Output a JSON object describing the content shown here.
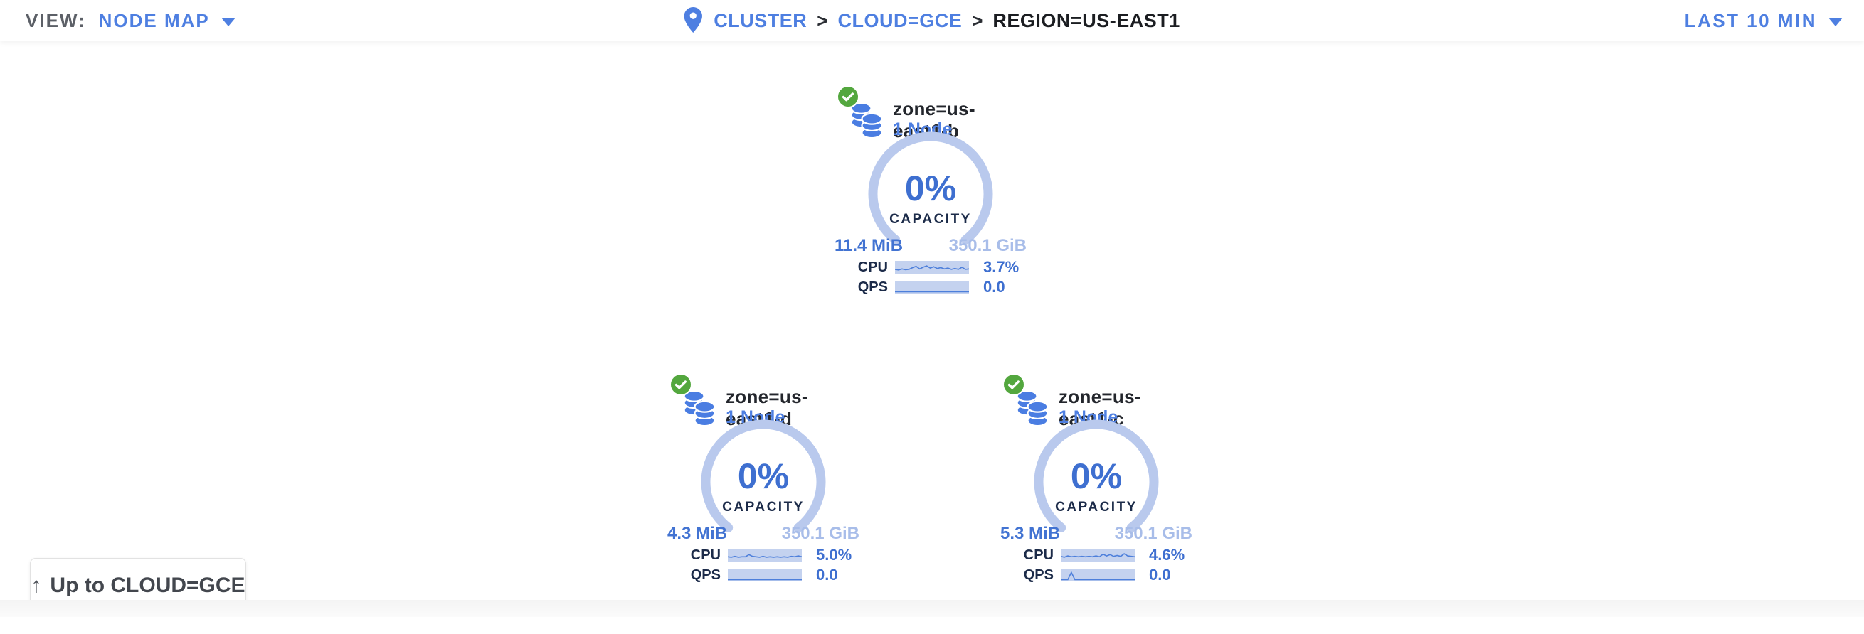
{
  "header": {
    "view_label": "VIEW:",
    "view_value": "NODE MAP",
    "breadcrumb": {
      "separator": ">",
      "items": [
        {
          "label": "CLUSTER"
        },
        {
          "label": "CLOUD=GCE"
        },
        {
          "label": "REGION=US-EAST1"
        }
      ]
    },
    "time_range": "LAST 10 MIN"
  },
  "map": {
    "zones": [
      {
        "name": "zone=us-east1-b",
        "node_count": "1 Node",
        "capacity_pct": "0%",
        "capacity_label": "CAPACITY",
        "capacity_used": "11.4 MiB",
        "capacity_total": "350.1 GiB",
        "cpu_label": "CPU",
        "cpu_value": "3.7%",
        "qps_label": "QPS",
        "qps_value": "0.0",
        "status": "healthy",
        "cpu_spark": [
          0.3,
          0.22,
          0.35,
          0.25,
          0.3,
          0.5,
          0.65,
          0.35,
          0.55,
          0.7,
          0.45,
          0.6,
          0.4,
          0.5,
          0.35,
          0.45,
          0.3,
          0.4,
          0.3,
          0.55,
          0.3,
          0.35
        ],
        "qps_spark": [
          0,
          0,
          0,
          0,
          0,
          0,
          0,
          0,
          0,
          0,
          0,
          0,
          0,
          0,
          0,
          0,
          0,
          0,
          0,
          0,
          0,
          0
        ]
      },
      {
        "name": "zone=us-east1-d",
        "node_count": "1 Node",
        "capacity_pct": "0%",
        "capacity_label": "CAPACITY",
        "capacity_used": "4.3 MiB",
        "capacity_total": "350.1 GiB",
        "cpu_label": "CPU",
        "cpu_value": "5.0%",
        "qps_label": "QPS",
        "qps_value": "0.0",
        "status": "healthy",
        "cpu_spark": [
          0.35,
          0.3,
          0.4,
          0.3,
          0.35,
          0.35,
          0.6,
          0.4,
          0.35,
          0.3,
          0.4,
          0.3,
          0.35,
          0.3,
          0.35,
          0.3,
          0.35,
          0.3,
          0.4,
          0.35,
          0.45,
          0.35
        ],
        "qps_spark": [
          0,
          0,
          0,
          0,
          0,
          0,
          0,
          0,
          0,
          0,
          0,
          0,
          0,
          0,
          0,
          0,
          0,
          0,
          0,
          0,
          0,
          0
        ]
      },
      {
        "name": "zone=us-east1-c",
        "node_count": "1 Node",
        "capacity_pct": "0%",
        "capacity_label": "CAPACITY",
        "capacity_used": "5.3 MiB",
        "capacity_total": "350.1 GiB",
        "cpu_label": "CPU",
        "cpu_value": "4.6%",
        "qps_label": "QPS",
        "qps_value": "0.0",
        "status": "healthy",
        "cpu_spark": [
          0.4,
          0.3,
          0.45,
          0.35,
          0.4,
          0.35,
          0.4,
          0.35,
          0.4,
          0.35,
          0.45,
          0.35,
          0.65,
          0.45,
          0.6,
          0.4,
          0.5,
          0.4,
          0.7,
          0.45,
          0.4,
          0.35
        ],
        "qps_spark": [
          0,
          0,
          0,
          0.85,
          0,
          0,
          0,
          0,
          0,
          0,
          0,
          0,
          0,
          0,
          0,
          0,
          0,
          0,
          0,
          0,
          0,
          0
        ]
      }
    ],
    "up_button": {
      "arrow": "↑",
      "label": "Up to CLOUD=GCE"
    }
  },
  "colors": {
    "link_blue": "#4e7fe1",
    "value_blue": "#3e6fd0",
    "arc_light_blue": "#b9c9ed",
    "total_light_blue": "#a8bde9",
    "spark_bg": "#c4d2ef",
    "spark_line": "#4d7fdb",
    "navy": "#1c2b49",
    "healthy_green": "#53a73e",
    "gray_text": "#5c6067"
  },
  "icons": {
    "pin": "map-pin",
    "check": "healthy-check",
    "db_group": "node-group-cylinders",
    "caret": "chevron-down"
  }
}
